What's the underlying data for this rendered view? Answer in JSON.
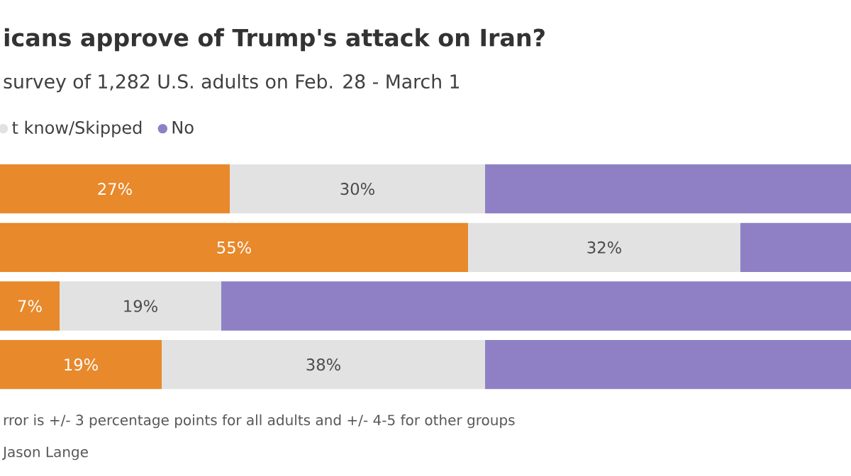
{
  "chart_data": {
    "type": "bar",
    "orientation": "horizontal",
    "stacked": true,
    "title": "icans approve of Trump's attack on Iran?",
    "subtitle": "survey of 1,282 U.S. adults on Feb. 28 - March 1",
    "categories": [
      null,
      null,
      null,
      null
    ],
    "series": [
      {
        "color": "#e8892b",
        "values": [
          27,
          55,
          7,
          19
        ],
        "value_labels": [
          "27%",
          "55%",
          "7%",
          "19%"
        ]
      },
      {
        "name": "t know/Skipped",
        "color": "#e2e2e2",
        "values": [
          30,
          32,
          19,
          38
        ],
        "value_labels": [
          "30%",
          "32%",
          "19%",
          "38%"
        ]
      },
      {
        "name": "No",
        "color": "#8f80c6",
        "values": [
          43,
          13,
          74,
          43
        ]
      }
    ],
    "tick_labels": false,
    "legend": "top left",
    "annotations": [
      "rror is +/- 3 percentage points for all adults and +/- 4-5 for other groups",
      "Jason Lange"
    ]
  }
}
